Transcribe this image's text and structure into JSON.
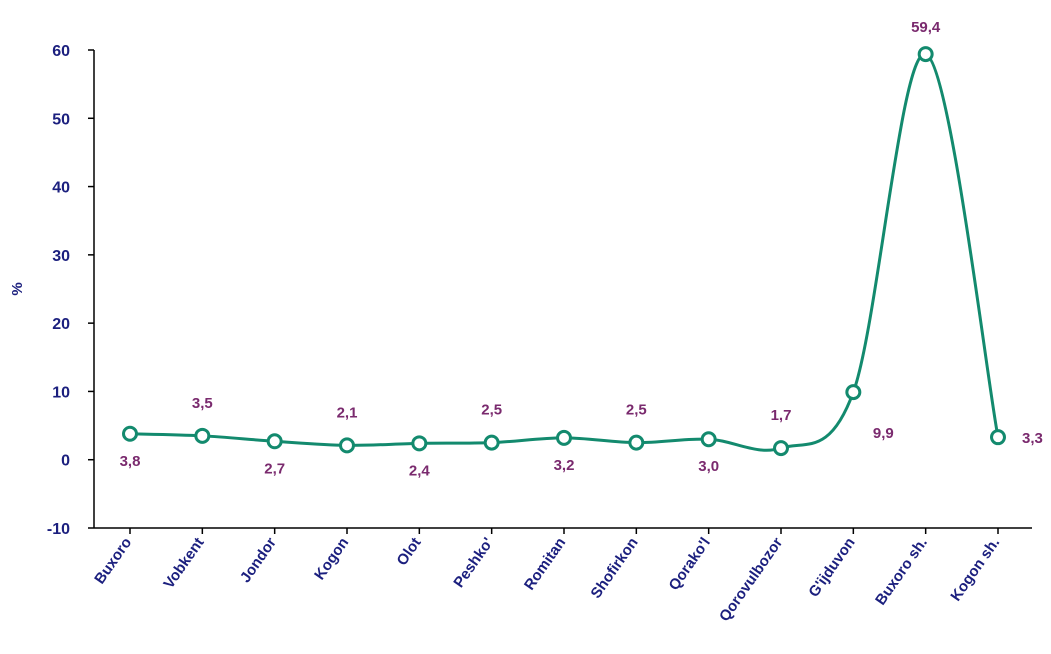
{
  "chart_data": {
    "type": "line",
    "title": "",
    "xlabel": "",
    "ylabel": "%",
    "ylim": [
      -10,
      60
    ],
    "yticks": [
      -10,
      0,
      10,
      20,
      30,
      40,
      50,
      60
    ],
    "grid": false,
    "smooth": true,
    "categories": [
      "Buxoro",
      "Vobkent",
      "Jondor",
      "Kogon",
      "Olot",
      "Peshko'",
      "Romitan",
      "Shofirkon",
      "Qorako'l",
      "Qorovulbozor",
      "G'ijduvon",
      "Buxoro sh.",
      "Kogon sh."
    ],
    "values": [
      3.8,
      3.5,
      2.7,
      2.1,
      2.4,
      2.5,
      3.2,
      2.5,
      3.0,
      1.7,
      9.9,
      59.4,
      3.3
    ],
    "data_labels": [
      "3,8",
      "3,5",
      "2,7",
      "2,1",
      "2,4",
      "2,5",
      "3,2",
      "2,5",
      "3,0",
      "1,7",
      "9,9",
      "59,4",
      "3,3"
    ],
    "colors": {
      "line": "#138a6e",
      "axis_text": "#1b1f7e",
      "data_label": "#7a2a6e",
      "axis_line": "#000000"
    }
  }
}
